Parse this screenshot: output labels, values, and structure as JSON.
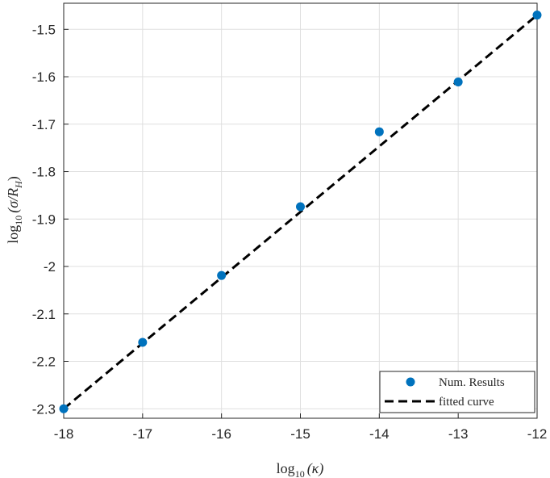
{
  "chart_data": {
    "type": "scatter",
    "x_axis": {
      "label_prefix": "log",
      "label_sub": "10",
      "label_arg": "(κ)",
      "lim": [
        -18,
        -12
      ],
      "ticks": [
        -18,
        -17,
        -16,
        -15,
        -14,
        -13,
        -12
      ],
      "tick_labels": [
        "-18",
        "-17",
        "-16",
        "-15",
        "-14",
        "-13",
        "-12"
      ]
    },
    "y_axis": {
      "label_prefix": "log",
      "label_sub": "10",
      "label_arg": "(σ/R",
      "label_arg_sub": "H",
      "label_arg_close": ")",
      "lim": [
        -2.32,
        -1.445
      ],
      "ticks": [
        -2.3,
        -2.2,
        -2.1,
        -2.0,
        -1.9,
        -1.8,
        -1.7,
        -1.6,
        -1.5
      ],
      "tick_labels": [
        "-2.3",
        "-2.2",
        "-2.1",
        "-2",
        "-1.9",
        "-1.8",
        "-1.7",
        "-1.6",
        "-1.5"
      ]
    },
    "grid": true,
    "legend_position": "bottom-right",
    "series": [
      {
        "name": "Num. Results",
        "kind": "scatter",
        "color": "#0072BD",
        "x": [
          -18,
          -17,
          -16,
          -15,
          -14,
          -13,
          -12
        ],
        "y": [
          -2.3,
          -2.16,
          -2.019,
          -1.874,
          -1.716,
          -1.611,
          -1.47
        ]
      },
      {
        "name": "fitted curve",
        "kind": "line",
        "style": "dashed",
        "color": "#000000",
        "x": [
          -18,
          -12
        ],
        "y": [
          -2.3,
          -1.47
        ]
      }
    ]
  }
}
